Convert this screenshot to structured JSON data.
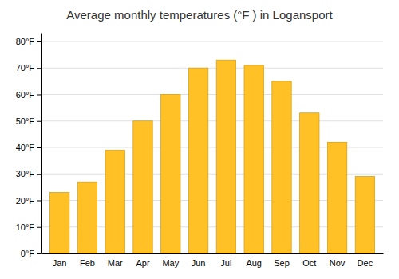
{
  "chart_data": {
    "type": "bar",
    "title": "Average monthly temperatures (°F ) in Logansport",
    "categories": [
      "Jan",
      "Feb",
      "Mar",
      "Apr",
      "May",
      "Jun",
      "Jul",
      "Aug",
      "Sep",
      "Oct",
      "Nov",
      "Dec"
    ],
    "values": [
      23,
      27,
      39,
      50,
      60,
      70,
      73,
      71,
      65,
      53,
      42,
      29
    ],
    "color": "#FFC125",
    "ylim": [
      0,
      83
    ],
    "yticks": [
      {
        "value": 0,
        "label": "0°F"
      },
      {
        "value": 10,
        "label": "10°F"
      },
      {
        "value": 20,
        "label": "20°F"
      },
      {
        "value": 30,
        "label": "30°F"
      },
      {
        "value": 40,
        "label": "40°F"
      },
      {
        "value": 50,
        "label": "50°F"
      },
      {
        "value": 60,
        "label": "60°F"
      },
      {
        "value": 70,
        "label": "70°F"
      },
      {
        "value": 80,
        "label": "80°F"
      }
    ],
    "grid": true
  }
}
